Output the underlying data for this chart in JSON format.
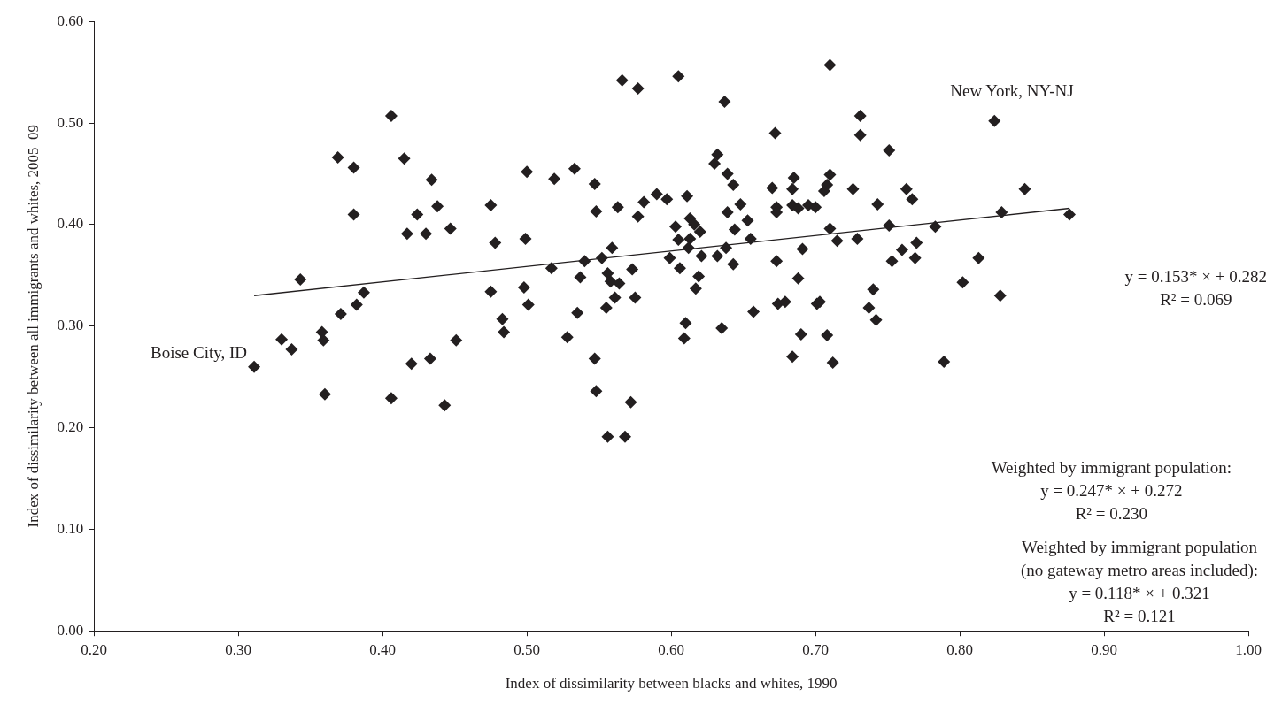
{
  "chart_data": {
    "type": "scatter",
    "xlabel": "Index of dissimilarity between blacks and whites, 1990",
    "ylabel": "Index of dissimilarity between all immigrants and whites, 2005–09",
    "xlim": [
      0.2,
      1.0
    ],
    "xticks": [
      {
        "value": 0.2,
        "label": "0.20"
      },
      {
        "value": 0.3,
        "label": "0.30"
      },
      {
        "value": 0.4,
        "label": "0.40"
      },
      {
        "value": 0.5,
        "label": "0.50"
      },
      {
        "value": 0.6,
        "label": "0.60"
      },
      {
        "value": 0.7,
        "label": "0.70"
      },
      {
        "value": 0.8,
        "label": "0.80"
      },
      {
        "value": 0.9,
        "label": "0.90"
      },
      {
        "value": 1.0,
        "label": "1.00"
      }
    ],
    "ylim": [
      0,
      0.6
    ],
    "yticks": [
      {
        "value": 0,
        "label": "0.00"
      },
      {
        "value": 0.1,
        "label": "0.10"
      },
      {
        "value": 0.2,
        "label": "0.20"
      },
      {
        "value": 0.3,
        "label": "0.30"
      },
      {
        "value": 0.4,
        "label": "0.40"
      },
      {
        "value": 0.5,
        "label": "0.50"
      },
      {
        "value": 0.6,
        "label": "0.60"
      }
    ],
    "grid": false,
    "legend": false,
    "series": [
      {
        "color": "#231f20",
        "marker": "diamond",
        "x": [
          0.406,
          0.369,
          0.38,
          0.415,
          0.434,
          0.475,
          0.38,
          0.424,
          0.438,
          0.417,
          0.43,
          0.447,
          0.478,
          0.343,
          0.387,
          0.382,
          0.371,
          0.358,
          0.359,
          0.33,
          0.337,
          0.311,
          0.475,
          0.483,
          0.484,
          0.451,
          0.433,
          0.42,
          0.36,
          0.406,
          0.443,
          0.566,
          0.577,
          0.605,
          0.637,
          0.632,
          0.63,
          0.639,
          0.643,
          0.5,
          0.519,
          0.533,
          0.547,
          0.548,
          0.563,
          0.577,
          0.581,
          0.59,
          0.597,
          0.611,
          0.603,
          0.613,
          0.616,
          0.62,
          0.605,
          0.613,
          0.612,
          0.648,
          0.639,
          0.653,
          0.644,
          0.655,
          0.638,
          0.632,
          0.621,
          0.599,
          0.606,
          0.643,
          0.499,
          0.559,
          0.552,
          0.54,
          0.517,
          0.537,
          0.573,
          0.556,
          0.558,
          0.564,
          0.619,
          0.617,
          0.498,
          0.501,
          0.561,
          0.575,
          0.555,
          0.535,
          0.528,
          0.61,
          0.609,
          0.635,
          0.657,
          0.547,
          0.548,
          0.572,
          0.556,
          0.568,
          0.71,
          0.731,
          0.672,
          0.731,
          0.751,
          0.824,
          0.71,
          0.708,
          0.706,
          0.685,
          0.684,
          0.67,
          0.726,
          0.763,
          0.767,
          0.743,
          0.673,
          0.673,
          0.684,
          0.688,
          0.695,
          0.7,
          0.845,
          0.71,
          0.751,
          0.783,
          0.829,
          0.715,
          0.729,
          0.691,
          0.76,
          0.77,
          0.769,
          0.753,
          0.813,
          0.673,
          0.688,
          0.802,
          0.828,
          0.74,
          0.674,
          0.679,
          0.701,
          0.703,
          0.737,
          0.742,
          0.69,
          0.708,
          0.684,
          0.712,
          0.789,
          0.876
        ],
        "values": [
          0.507,
          0.466,
          0.456,
          0.465,
          0.444,
          0.419,
          0.41,
          0.41,
          0.418,
          0.391,
          0.391,
          0.396,
          0.382,
          0.346,
          0.333,
          0.321,
          0.312,
          0.294,
          0.286,
          0.287,
          0.277,
          0.26,
          0.334,
          0.307,
          0.294,
          0.286,
          0.268,
          0.263,
          0.233,
          0.229,
          0.222,
          0.542,
          0.534,
          0.546,
          0.521,
          0.469,
          0.46,
          0.45,
          0.439,
          0.452,
          0.445,
          0.455,
          0.44,
          0.413,
          0.417,
          0.408,
          0.422,
          0.43,
          0.425,
          0.428,
          0.398,
          0.406,
          0.4,
          0.393,
          0.385,
          0.386,
          0.377,
          0.42,
          0.412,
          0.404,
          0.395,
          0.386,
          0.377,
          0.369,
          0.369,
          0.367,
          0.357,
          0.361,
          0.386,
          0.377,
          0.367,
          0.364,
          0.357,
          0.348,
          0.356,
          0.352,
          0.344,
          0.342,
          0.349,
          0.337,
          0.338,
          0.321,
          0.328,
          0.328,
          0.318,
          0.313,
          0.289,
          0.303,
          0.288,
          0.298,
          0.314,
          0.268,
          0.236,
          0.225,
          0.191,
          0.191,
          0.557,
          0.507,
          0.49,
          0.488,
          0.473,
          0.502,
          0.449,
          0.439,
          0.433,
          0.446,
          0.435,
          0.436,
          0.435,
          0.435,
          0.425,
          0.42,
          0.417,
          0.412,
          0.419,
          0.416,
          0.419,
          0.417,
          0.435,
          0.396,
          0.399,
          0.398,
          0.412,
          0.384,
          0.386,
          0.376,
          0.375,
          0.382,
          0.367,
          0.364,
          0.367,
          0.364,
          0.347,
          0.343,
          0.33,
          0.336,
          0.322,
          0.324,
          0.322,
          0.324,
          0.318,
          0.306,
          0.292,
          0.291,
          0.27,
          0.264,
          0.265,
          0.41
        ]
      },
      {
        "type": "line",
        "color": "#231f20",
        "marker": "none",
        "line_style": "solid",
        "x": [
          0.311,
          0.876
        ],
        "values": [
          0.33,
          0.416
        ]
      }
    ],
    "annotations": [
      {
        "text": "New York, NY-NJ",
        "x": 0.824,
        "y": 0.502
      },
      {
        "text": "Boise City, ID",
        "x": 0.311,
        "y": 0.26
      },
      "y = 0.153* × + 0.282\nR² = 0.069",
      "Weighted by immigrant population:\ny = 0.247* × + 0.272\nR² = 0.230",
      "Weighted by immigrant population\n(no gateway metro areas included):\ny = 0.118* × + 0.321\nR² = 0.121"
    ]
  }
}
